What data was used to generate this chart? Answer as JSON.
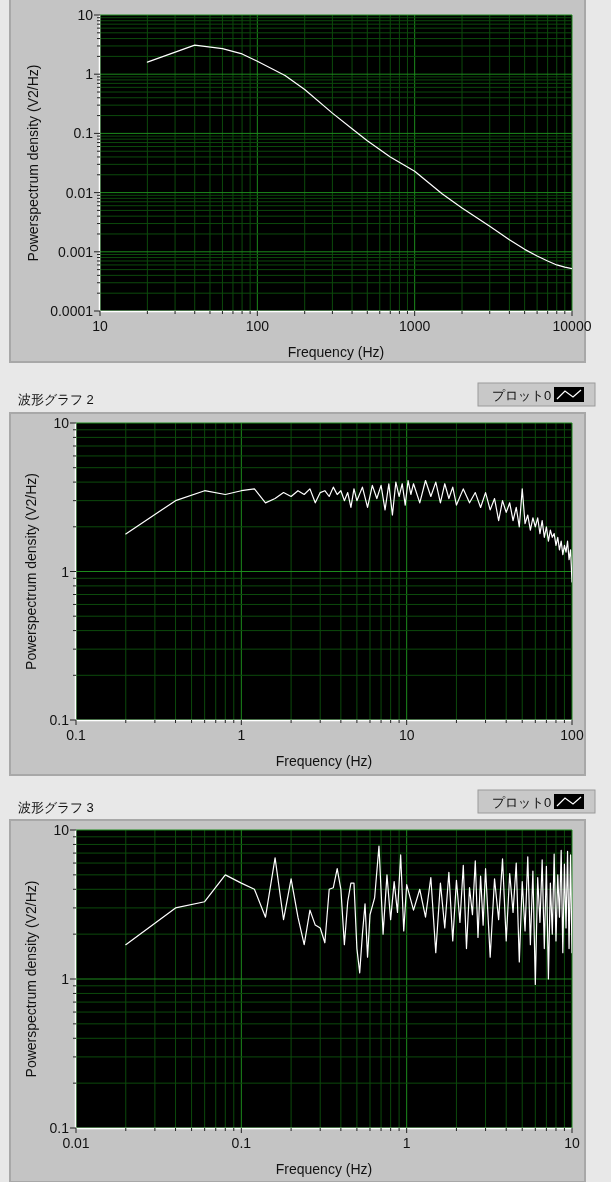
{
  "chart_data": [
    {
      "type": "line",
      "xlabel": "Frequency (Hz)",
      "ylabel": "Powerspectrum density (V2/Hz)",
      "log": "xy",
      "xlim": [
        10,
        10000
      ],
      "ylim": [
        0.0001,
        10
      ],
      "xticks": [
        10,
        {
          "value": 20,
          "label": null
        },
        {
          "value": 30,
          "label": null
        },
        {
          "value": 40,
          "label": null
        },
        {
          "value": 50,
          "label": null
        },
        {
          "value": 60,
          "label": null
        },
        {
          "value": 70,
          "label": null
        },
        {
          "value": 80,
          "label": null
        },
        {
          "value": 90,
          "label": null
        },
        100,
        {
          "value": 200,
          "label": null
        },
        {
          "value": 300,
          "label": null
        },
        {
          "value": 400,
          "label": null
        },
        {
          "value": 500,
          "label": null
        },
        {
          "value": 600,
          "label": null
        },
        {
          "value": 700,
          "label": null
        },
        {
          "value": 800,
          "label": null
        },
        {
          "value": 900,
          "label": null
        },
        1000,
        {
          "value": 2000,
          "label": null
        },
        {
          "value": 3000,
          "label": null
        },
        {
          "value": 4000,
          "label": null
        },
        {
          "value": 5000,
          "label": null
        },
        {
          "value": 6000,
          "label": null
        },
        {
          "value": 7000,
          "label": null
        },
        {
          "value": 8000,
          "label": null
        },
        {
          "value": 9000,
          "label": null
        },
        10000
      ],
      "yticks": [
        0.0001,
        {
          "value": 0.0002,
          "label": null
        },
        {
          "value": 0.0003,
          "label": null
        },
        {
          "value": 0.0004,
          "label": null
        },
        {
          "value": 0.0005,
          "label": null
        },
        {
          "value": 0.0006,
          "label": null
        },
        {
          "value": 0.0007,
          "label": null
        },
        {
          "value": 0.0008,
          "label": null
        },
        {
          "value": 0.0009,
          "label": null
        },
        0.001,
        {
          "value": 0.002,
          "label": null
        },
        {
          "value": 0.003,
          "label": null
        },
        {
          "value": 0.004,
          "label": null
        },
        {
          "value": 0.005,
          "label": null
        },
        {
          "value": 0.006,
          "label": null
        },
        {
          "value": 0.007,
          "label": null
        },
        {
          "value": 0.008,
          "label": null
        },
        {
          "value": 0.009,
          "label": null
        },
        0.01,
        {
          "value": 0.02,
          "label": null
        },
        {
          "value": 0.03,
          "label": null
        },
        {
          "value": 0.04,
          "label": null
        },
        {
          "value": 0.05,
          "label": null
        },
        {
          "value": 0.06,
          "label": null
        },
        {
          "value": 0.07,
          "label": null
        },
        {
          "value": 0.08,
          "label": null
        },
        {
          "value": 0.09,
          "label": null
        },
        0.1,
        {
          "value": 0.2,
          "label": null
        },
        {
          "value": 0.3,
          "label": null
        },
        {
          "value": 0.4,
          "label": null
        },
        {
          "value": 0.5,
          "label": null
        },
        {
          "value": 0.6,
          "label": null
        },
        {
          "value": 0.7,
          "label": null
        },
        {
          "value": 0.8,
          "label": null
        },
        {
          "value": 0.9,
          "label": null
        },
        1,
        {
          "value": 2,
          "label": null
        },
        {
          "value": 3,
          "label": null
        },
        {
          "value": 4,
          "label": null
        },
        {
          "value": 5,
          "label": null
        },
        {
          "value": 6,
          "label": null
        },
        {
          "value": 7,
          "label": null
        },
        {
          "value": 8,
          "label": null
        },
        {
          "value": 9,
          "label": null
        },
        10
      ],
      "grid": true,
      "series": [
        {
          "color": "#ffffff",
          "x": [
            20,
            40,
            60,
            80,
            100,
            150,
            200,
            300,
            400,
            500,
            700,
            1000,
            1500,
            2000,
            3000,
            4000,
            5000,
            6000,
            7000,
            8000,
            9000,
            10000
          ],
          "values": [
            1.6,
            3.1,
            2.7,
            2.2,
            1.65,
            0.95,
            0.55,
            0.22,
            0.12,
            0.075,
            0.04,
            0.023,
            0.0095,
            0.0055,
            0.0027,
            0.0016,
            0.0011,
            0.00085,
            0.0007,
            0.0006,
            0.00055,
            0.00052
          ]
        }
      ]
    },
    {
      "type": "line",
      "title": "波形グラフ 2",
      "xlabel": "Frequency (Hz)",
      "ylabel": "Powerspectrum density (V2/Hz)",
      "log": "xy",
      "xlim": [
        0.1,
        100
      ],
      "ylim": [
        0.1,
        10
      ],
      "xticks": [
        0.1,
        {
          "value": 0.2,
          "label": null
        },
        {
          "value": 0.3,
          "label": null
        },
        {
          "value": 0.4,
          "label": null
        },
        {
          "value": 0.5,
          "label": null
        },
        {
          "value": 0.6,
          "label": null
        },
        {
          "value": 0.7,
          "label": null
        },
        {
          "value": 0.8,
          "label": null
        },
        {
          "value": 0.9,
          "label": null
        },
        1,
        {
          "value": 2,
          "label": null
        },
        {
          "value": 3,
          "label": null
        },
        {
          "value": 4,
          "label": null
        },
        {
          "value": 5,
          "label": null
        },
        {
          "value": 6,
          "label": null
        },
        {
          "value": 7,
          "label": null
        },
        {
          "value": 8,
          "label": null
        },
        {
          "value": 9,
          "label": null
        },
        10,
        {
          "value": 20,
          "label": null
        },
        {
          "value": 30,
          "label": null
        },
        {
          "value": 40,
          "label": null
        },
        {
          "value": 50,
          "label": null
        },
        {
          "value": 60,
          "label": null
        },
        {
          "value": 70,
          "label": null
        },
        {
          "value": 80,
          "label": null
        },
        {
          "value": 90,
          "label": null
        },
        100
      ],
      "yticks": [
        0.1,
        {
          "value": 0.2,
          "label": null
        },
        {
          "value": 0.3,
          "label": null
        },
        {
          "value": 0.4,
          "label": null
        },
        {
          "value": 0.5,
          "label": null
        },
        {
          "value": 0.6,
          "label": null
        },
        {
          "value": 0.7,
          "label": null
        },
        {
          "value": 0.8,
          "label": null
        },
        {
          "value": 0.9,
          "label": null
        },
        1,
        {
          "value": 2,
          "label": null
        },
        {
          "value": 3,
          "label": null
        },
        {
          "value": 4,
          "label": null
        },
        {
          "value": 5,
          "label": null
        },
        {
          "value": 6,
          "label": null
        },
        {
          "value": 7,
          "label": null
        },
        {
          "value": 8,
          "label": null
        },
        {
          "value": 9,
          "label": null
        },
        10
      ],
      "grid": true,
      "legend": "top right",
      "series": [
        {
          "name": "プロット0",
          "color": "#ffffff",
          "x": [
            0.2,
            0.4,
            0.6,
            0.8,
            1,
            1.2,
            1.4,
            1.6,
            1.8,
            2,
            2.2,
            2.4,
            2.6,
            2.8,
            3,
            3.2,
            3.4,
            3.6,
            3.8,
            4,
            4.2,
            4.4,
            4.6,
            4.8,
            5,
            5.4,
            5.8,
            6.2,
            6.6,
            7,
            7.4,
            7.8,
            8.2,
            8.6,
            9,
            9.4,
            9.8,
            10.2,
            10.6,
            11,
            12,
            13,
            14,
            15,
            16,
            17,
            18,
            19,
            20,
            22,
            24,
            26,
            28,
            30,
            32,
            34,
            36,
            38,
            40,
            42,
            44,
            46,
            48,
            50,
            52,
            54,
            56,
            58,
            60,
            62,
            64,
            66,
            68,
            70,
            72,
            74,
            76,
            78,
            80,
            82,
            84,
            86,
            88,
            90,
            92,
            94,
            96,
            98,
            99,
            100
          ],
          "values": [
            1.79,
            3.0,
            3.5,
            3.3,
            3.5,
            3.6,
            2.9,
            3.1,
            3.4,
            3.2,
            3.5,
            3.3,
            3.6,
            2.9,
            3.4,
            3.5,
            3.2,
            3.7,
            3.3,
            3.5,
            3.0,
            3.4,
            2.7,
            3.6,
            3.0,
            3.7,
            2.7,
            3.8,
            3.1,
            3.8,
            2.6,
            3.9,
            2.4,
            4.0,
            3.2,
            3.9,
            2.8,
            4.1,
            3.3,
            3.9,
            2.9,
            4.1,
            3.2,
            4.0,
            2.9,
            3.9,
            3.1,
            3.7,
            2.8,
            3.6,
            2.9,
            3.4,
            2.7,
            3.4,
            2.6,
            3.1,
            2.2,
            3.0,
            2.5,
            2.9,
            2.2,
            2.7,
            2.0,
            3.6,
            2.1,
            2.4,
            1.9,
            2.3,
            2.0,
            2.3,
            1.8,
            2.2,
            1.7,
            2.0,
            1.6,
            1.9,
            1.7,
            1.8,
            1.5,
            1.7,
            1.4,
            1.6,
            1.3,
            1.5,
            1.35,
            1.6,
            1.2,
            1.4,
            1.1,
            0.85
          ]
        }
      ]
    },
    {
      "type": "line",
      "title": "波形グラフ 3",
      "xlabel": "Frequency (Hz)",
      "ylabel": "Powerspectrum density (V2/Hz)",
      "log": "xy",
      "xlim": [
        0.01,
        10
      ],
      "ylim": [
        0.1,
        10
      ],
      "xticks": [
        0.01,
        {
          "value": 0.02,
          "label": null
        },
        {
          "value": 0.03,
          "label": null
        },
        {
          "value": 0.04,
          "label": null
        },
        {
          "value": 0.05,
          "label": null
        },
        {
          "value": 0.06,
          "label": null
        },
        {
          "value": 0.07,
          "label": null
        },
        {
          "value": 0.08,
          "label": null
        },
        {
          "value": 0.09,
          "label": null
        },
        0.1,
        {
          "value": 0.2,
          "label": null
        },
        {
          "value": 0.3,
          "label": null
        },
        {
          "value": 0.4,
          "label": null
        },
        {
          "value": 0.5,
          "label": null
        },
        {
          "value": 0.6,
          "label": null
        },
        {
          "value": 0.7,
          "label": null
        },
        {
          "value": 0.8,
          "label": null
        },
        {
          "value": 0.9,
          "label": null
        },
        1,
        {
          "value": 2,
          "label": null
        },
        {
          "value": 3,
          "label": null
        },
        {
          "value": 4,
          "label": null
        },
        {
          "value": 5,
          "label": null
        },
        {
          "value": 6,
          "label": null
        },
        {
          "value": 7,
          "label": null
        },
        {
          "value": 8,
          "label": null
        },
        {
          "value": 9,
          "label": null
        },
        10
      ],
      "yticks": [
        0.1,
        {
          "value": 0.2,
          "label": null
        },
        {
          "value": 0.3,
          "label": null
        },
        {
          "value": 0.4,
          "label": null
        },
        {
          "value": 0.5,
          "label": null
        },
        {
          "value": 0.6,
          "label": null
        },
        {
          "value": 0.7,
          "label": null
        },
        {
          "value": 0.8,
          "label": null
        },
        {
          "value": 0.9,
          "label": null
        },
        1,
        {
          "value": 2,
          "label": null
        },
        {
          "value": 3,
          "label": null
        },
        {
          "value": 4,
          "label": null
        },
        {
          "value": 5,
          "label": null
        },
        {
          "value": 6,
          "label": null
        },
        {
          "value": 7,
          "label": null
        },
        {
          "value": 8,
          "label": null
        },
        {
          "value": 9,
          "label": null
        },
        10
      ],
      "grid": true,
      "legend": "top right",
      "series": [
        {
          "name": "プロット0",
          "color": "#ffffff",
          "x": [
            0.02,
            0.04,
            0.06,
            0.08,
            0.1,
            0.12,
            0.14,
            0.16,
            0.18,
            0.2,
            0.22,
            0.24,
            0.26,
            0.28,
            0.3,
            0.32,
            0.34,
            0.36,
            0.38,
            0.4,
            0.42,
            0.44,
            0.46,
            0.48,
            0.5,
            0.52,
            0.54,
            0.56,
            0.58,
            0.6,
            0.64,
            0.68,
            0.72,
            0.76,
            0.8,
            0.84,
            0.88,
            0.92,
            0.96,
            1.0,
            1.1,
            1.2,
            1.3,
            1.4,
            1.5,
            1.6,
            1.7,
            1.8,
            1.9,
            2.0,
            2.1,
            2.2,
            2.3,
            2.4,
            2.5,
            2.6,
            2.7,
            2.8,
            2.9,
            3.0,
            3.2,
            3.4,
            3.6,
            3.8,
            4.0,
            4.2,
            4.4,
            4.6,
            4.8,
            5.0,
            5.2,
            5.4,
            5.6,
            5.8,
            6.0,
            6.2,
            6.4,
            6.6,
            6.8,
            7.0,
            7.2,
            7.4,
            7.6,
            7.8,
            8.0,
            8.2,
            8.4,
            8.6,
            8.8,
            9.0,
            9.2,
            9.4,
            9.6,
            9.8,
            10
          ],
          "values": [
            1.7,
            3.0,
            3.3,
            5.0,
            4.4,
            4.0,
            2.6,
            6.5,
            2.5,
            4.7,
            2.6,
            1.7,
            2.9,
            2.3,
            2.2,
            1.75,
            4.0,
            4.1,
            5.5,
            4.0,
            1.7,
            3.3,
            4.4,
            4.4,
            1.6,
            1.1,
            2.0,
            3.2,
            1.4,
            2.7,
            3.5,
            7.8,
            2.0,
            5.0,
            2.5,
            4.5,
            2.8,
            6.8,
            2.1,
            4.3,
            2.9,
            4.0,
            2.6,
            4.8,
            1.5,
            4.4,
            2.2,
            5.2,
            1.8,
            4.6,
            2.4,
            5.8,
            1.6,
            4.1,
            2.7,
            6.2,
            1.9,
            4.9,
            2.3,
            5.5,
            1.4,
            4.7,
            2.5,
            6.4,
            1.8,
            5.1,
            2.8,
            6.0,
            1.3,
            4.5,
            2.1,
            6.6,
            1.7,
            5.3,
            0.92,
            4.8,
            2.4,
            6.3,
            1.6,
            5.7,
            1.0,
            4.4,
            2.0,
            6.9,
            1.8,
            5.0,
            2.6,
            7.3,
            1.5,
            5.9,
            2.2,
            7.2,
            1.6,
            6.8,
            1.5
          ]
        }
      ]
    }
  ]
}
